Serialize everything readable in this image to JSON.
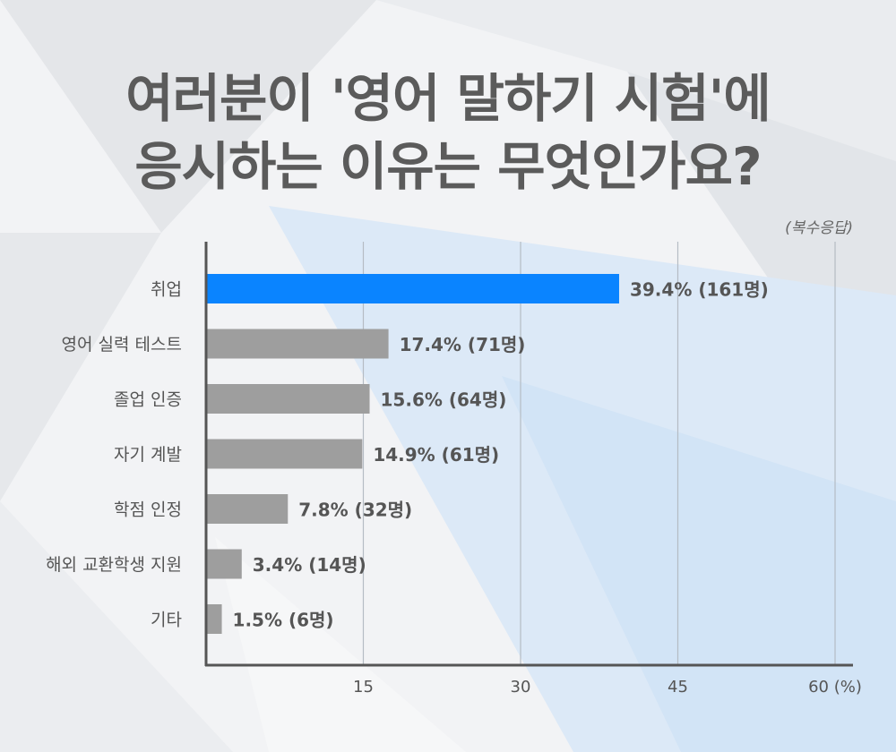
{
  "title_lines": [
    "여러분이 '영어 말하기 시험'에",
    "응시하는 이유는 무엇인가요?"
  ],
  "note": "(복수응답)",
  "colors": {
    "highlight": "#0a84ff",
    "bar": "#9e9e9e",
    "axis": "#555555",
    "grid": "#b5bcc4",
    "label": "#555555",
    "value": "#555555"
  },
  "chart_data": {
    "type": "bar",
    "orientation": "horizontal",
    "categories": [
      "취업",
      "영어 실력 테스트",
      "졸업 인증",
      "자기 계발",
      "학점 인정",
      "해외 교환학생 지원",
      "기타"
    ],
    "values": [
      39.4,
      17.4,
      15.6,
      14.9,
      7.8,
      3.4,
      1.5
    ],
    "data_labels": [
      "39.4% (161명)",
      "17.4% (71명)",
      "15.6% (64명)",
      "14.9% (61명)",
      "7.8% (32명)",
      "3.4% (14명)",
      "1.5% (6명)"
    ],
    "xlim": [
      0,
      60
    ],
    "xticks": [
      15,
      30,
      45,
      60
    ],
    "xtick_labels": [
      "15",
      "30",
      "45",
      "60 (%)"
    ],
    "grid": true,
    "highlight_index": 0
  }
}
